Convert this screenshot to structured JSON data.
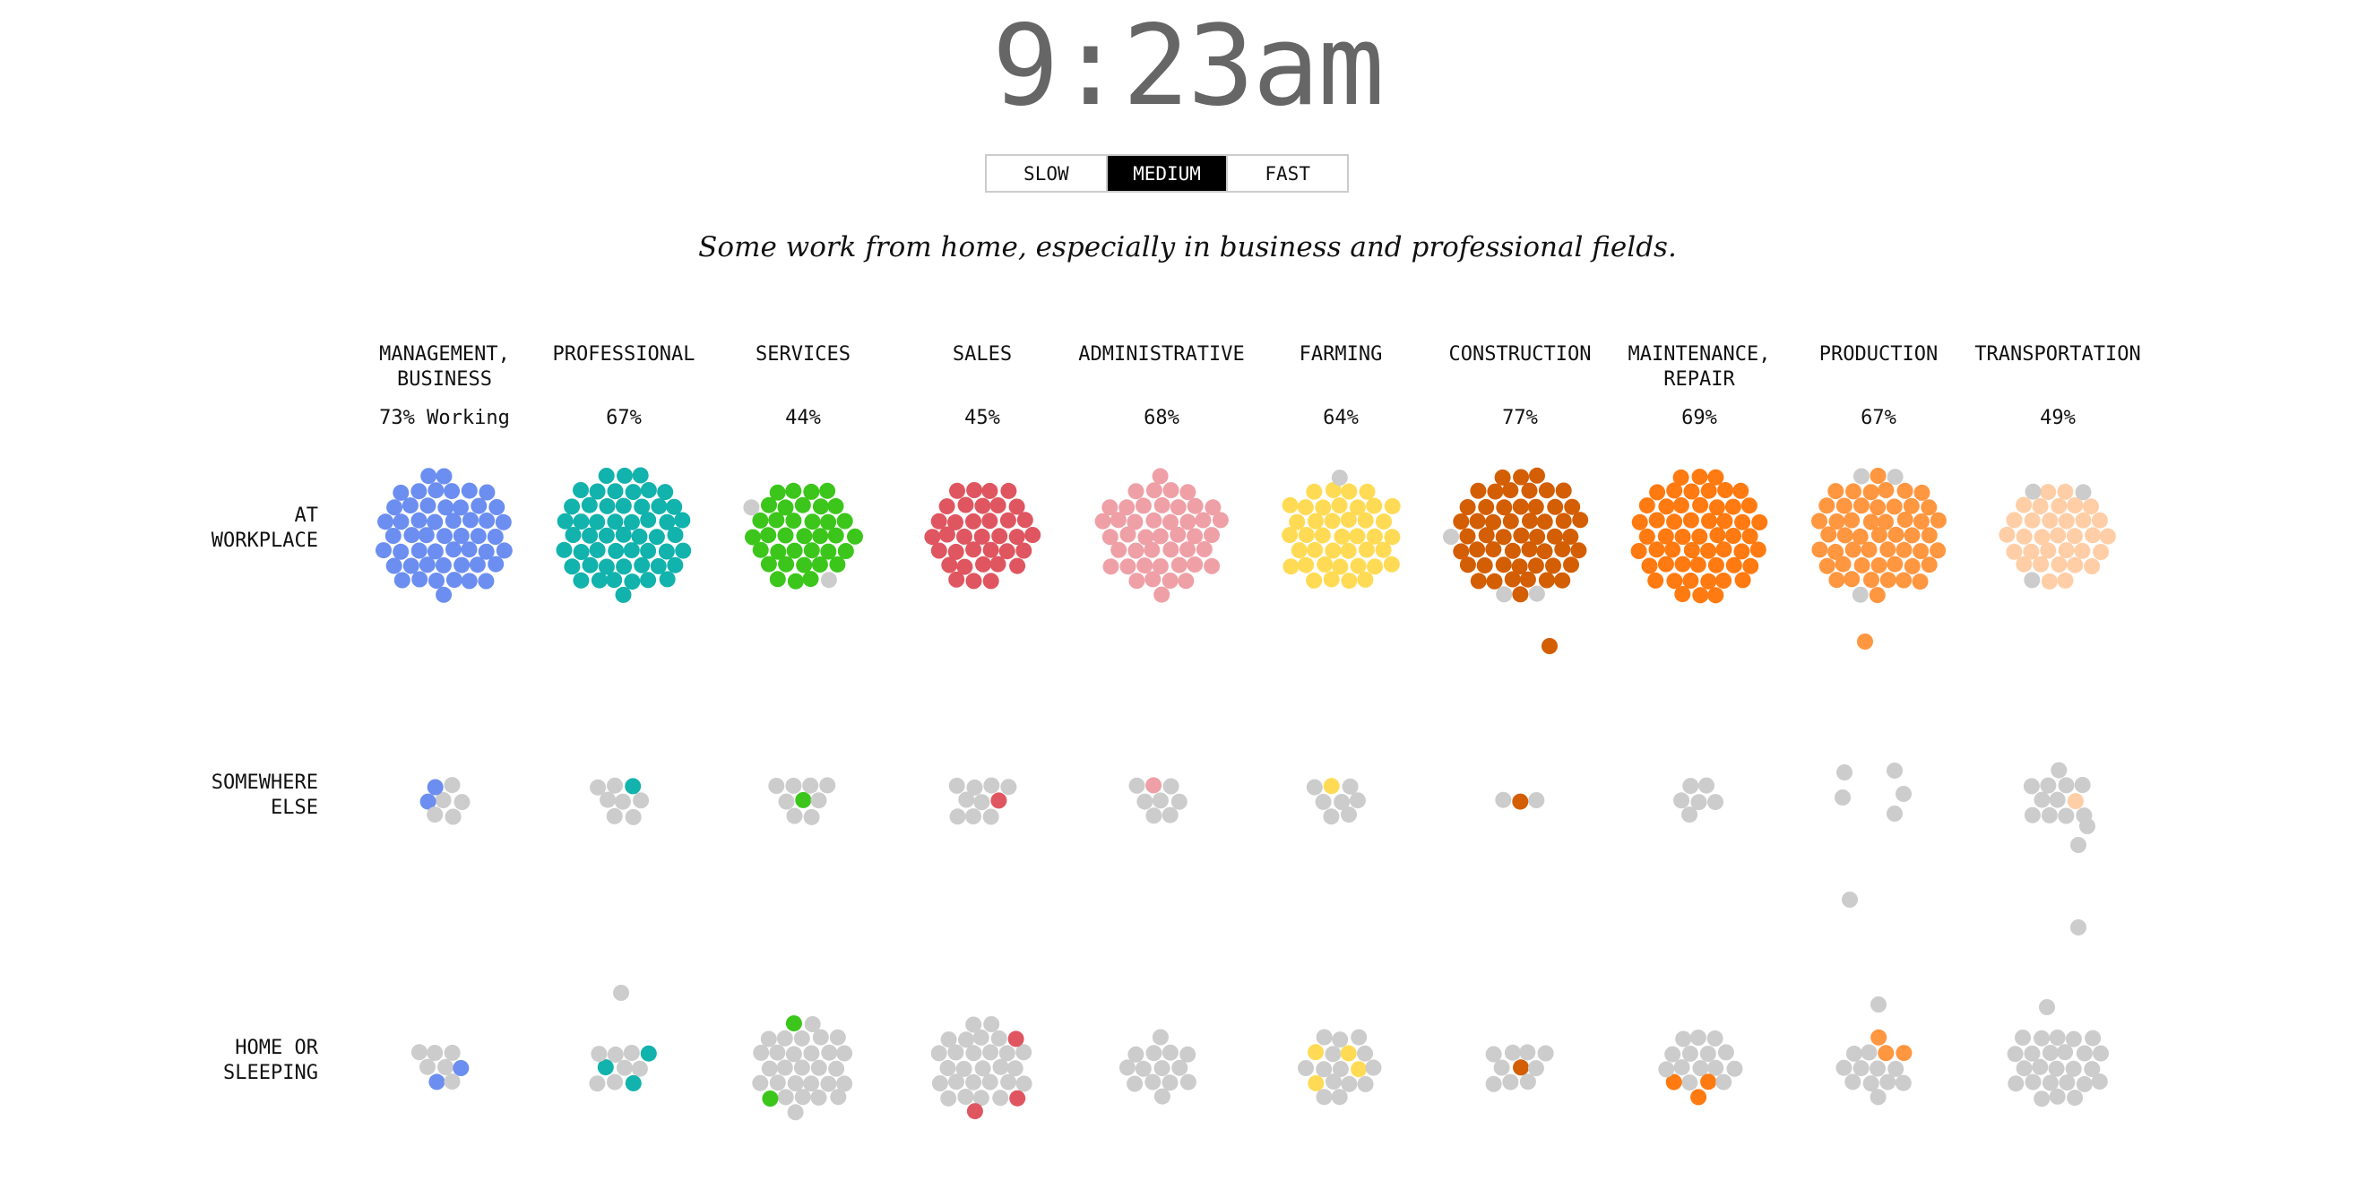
{
  "clock": {
    "time": "9:23am"
  },
  "speed": {
    "options": [
      "SLOW",
      "MEDIUM",
      "FAST"
    ],
    "selected": "MEDIUM"
  },
  "caption": "Some work from home, especially in business and professional fields.",
  "rows": [
    {
      "label_lines": [
        "AT",
        "WORKPLACE"
      ]
    },
    {
      "label_lines": [
        "SOMEWHERE",
        "ELSE"
      ]
    },
    {
      "label_lines": [
        "HOME OR",
        "SLEEPING"
      ]
    }
  ],
  "colors": {
    "inactive_dot": "#cccccc",
    "clock_text": "#666666"
  },
  "categories": [
    {
      "label_lines": [
        "MANAGEMENT,",
        "BUSINESS"
      ],
      "percent": "73% Working",
      "color": "#6b8ef0"
    },
    {
      "label_lines": [
        "PROFESSIONAL"
      ],
      "percent": "67%",
      "color": "#12b2ad"
    },
    {
      "label_lines": [
        "SERVICES"
      ],
      "percent": "44%",
      "color": "#3cc61c"
    },
    {
      "label_lines": [
        "SALES"
      ],
      "percent": "45%",
      "color": "#df5660"
    },
    {
      "label_lines": [
        "ADMINISTRATIVE"
      ],
      "percent": "68%",
      "color": "#eea0a6"
    },
    {
      "label_lines": [
        "FARMING"
      ],
      "percent": "64%",
      "color": "#ffdb55"
    },
    {
      "label_lines": [
        "CONSTRUCTION"
      ],
      "percent": "77%",
      "color": "#d35e03"
    },
    {
      "label_lines": [
        "MAINTENANCE,",
        "REPAIR"
      ],
      "percent": "69%",
      "color": "#ff7a10"
    },
    {
      "label_lines": [
        "PRODUCTION"
      ],
      "percent": "67%",
      "color": "#ff9640"
    },
    {
      "label_lines": [
        "TRANSPORTATION"
      ],
      "percent": "49%",
      "color": "#ffcea6"
    }
  ]
}
